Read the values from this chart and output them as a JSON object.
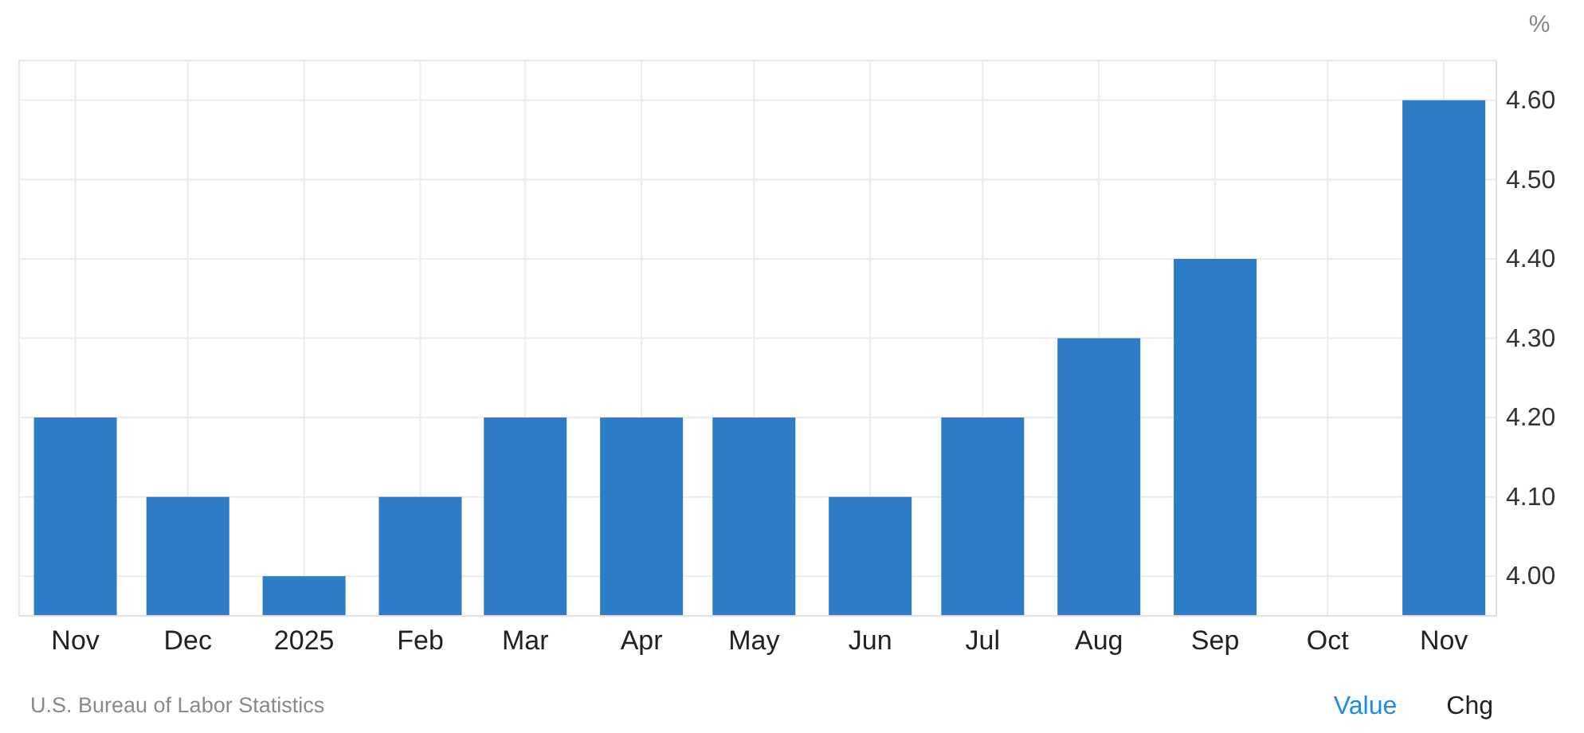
{
  "chart_data": {
    "type": "bar",
    "ylabel": "%",
    "x": [
      "2024-11",
      "2024-12",
      "2025-01",
      "2025-02",
      "2025-03",
      "2025-04",
      "2025-05",
      "2025-06",
      "2025-07",
      "2025-08",
      "2025-09",
      "2025-10",
      "2025-11"
    ],
    "values": [
      4.2,
      4.1,
      4.0,
      4.1,
      4.2,
      4.2,
      4.2,
      4.1,
      4.2,
      4.3,
      4.4,
      null,
      4.6
    ],
    "color": "#2e7bc6",
    "xlim": [
      "2024-10-17",
      "2025-11-15"
    ],
    "xticks": [
      {
        "value": "2024-11",
        "label": "Nov"
      },
      {
        "value": "2024-12",
        "label": "Dec"
      },
      {
        "value": "2025-01",
        "label": "2025"
      },
      {
        "value": "2025-02",
        "label": "Feb"
      },
      {
        "value": "2025-03",
        "label": "Mar"
      },
      {
        "value": "2025-04",
        "label": "Apr"
      },
      {
        "value": "2025-05",
        "label": "May"
      },
      {
        "value": "2025-06",
        "label": "Jun"
      },
      {
        "value": "2025-07",
        "label": "Jul"
      },
      {
        "value": "2025-08",
        "label": "Aug"
      },
      {
        "value": "2025-09",
        "label": "Sep"
      },
      {
        "value": "2025-10",
        "label": "Oct"
      },
      {
        "value": "2025-11",
        "label": "Nov"
      }
    ],
    "ylim": [
      3.95,
      4.65
    ],
    "yticks": [
      {
        "value": 4,
        "label": "4.00"
      },
      {
        "value": 4.1,
        "label": "4.10"
      },
      {
        "value": 4.2,
        "label": "4.20"
      },
      {
        "value": 4.3,
        "label": "4.30"
      },
      {
        "value": 4.4,
        "label": "4.40"
      },
      {
        "value": 4.5,
        "label": "4.50"
      },
      {
        "value": 4.6,
        "label": "4.60"
      }
    ],
    "grid": true,
    "annotations": [
      "U.S. Bureau of Labor Statistics",
      "Value",
      "Chg"
    ]
  }
}
